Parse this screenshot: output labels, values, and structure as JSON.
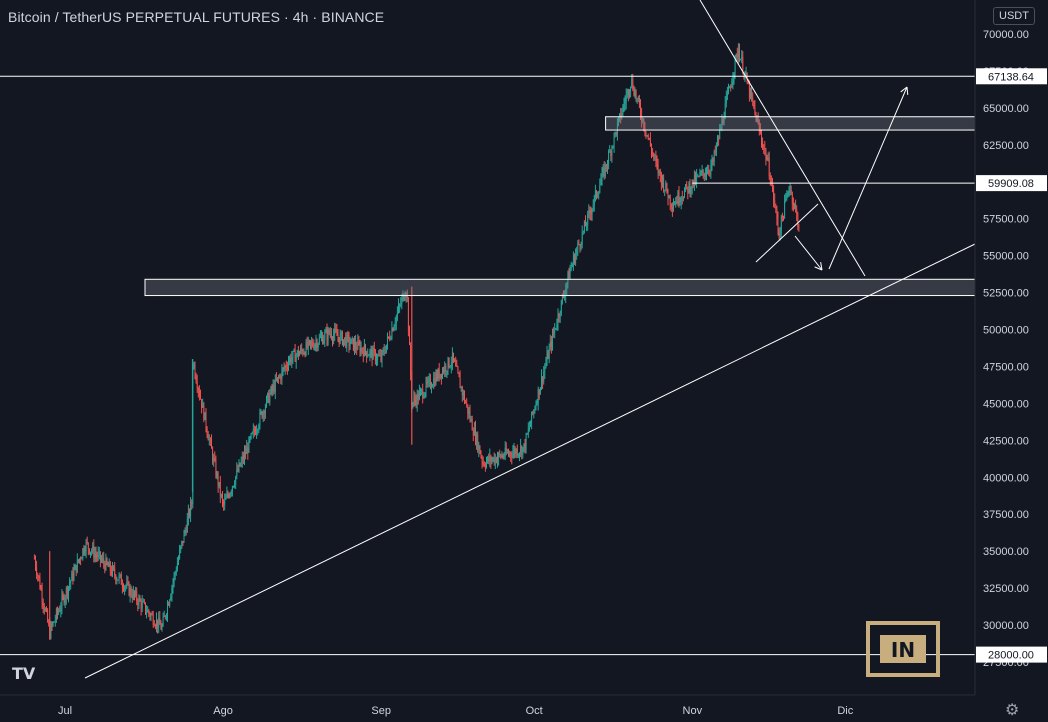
{
  "header": {
    "symbol_title": "Bitcoin / TetherUS PERPETUAL FUTURES · 4h · BINANCE",
    "currency_button": "USDT"
  },
  "branding": {
    "tradingview_logo": "TV",
    "watermark_text": "IN"
  },
  "icons": {
    "settings": "gear-icon"
  },
  "colors": {
    "background": "#131722",
    "up_candle": "#26a69a",
    "down_candle": "#ef5350",
    "axis_text": "#d1d4dc",
    "drawing": "#ffffff",
    "watermark": "#c8ad7f"
  },
  "chart_data": {
    "type": "candlestick",
    "title": "Bitcoin / TetherUS PERPETUAL FUTURES · 4h · BINANCE",
    "interval": "4h",
    "exchange": "BINANCE",
    "quote_currency": "USDT",
    "xlabel": "",
    "ylabel": "",
    "x_tick_labels": [
      "Jul",
      "Ago",
      "Sep",
      "Oct",
      "Nov",
      "Dic"
    ],
    "x_range": [
      "2021-06-25",
      "2021-12-20"
    ],
    "y_tick_labels": [
      "70000.00",
      "67500.00",
      "65000.00",
      "62500.00",
      "60000.00",
      "57500.00",
      "55000.00",
      "52500.00",
      "50000.00",
      "47500.00",
      "45000.00",
      "42500.00",
      "40000.00",
      "37500.00",
      "35000.00",
      "32500.00",
      "30000.00",
      "27500.00"
    ],
    "ylim": [
      27000,
      71000
    ],
    "highlighted_prices": [
      "67138.64",
      "59909.08",
      "28000.00"
    ],
    "grid": false,
    "price_path_approx": [
      {
        "date": "2021-06-25",
        "price": 34500
      },
      {
        "date": "2021-06-28",
        "price": 29500
      },
      {
        "date": "2021-07-05",
        "price": 35500
      },
      {
        "date": "2021-07-12",
        "price": 33000
      },
      {
        "date": "2021-07-20",
        "price": 29800
      },
      {
        "date": "2021-07-26",
        "price": 38500
      },
      {
        "date": "2021-07-26",
        "price": 48000
      },
      {
        "date": "2021-08-01",
        "price": 38000
      },
      {
        "date": "2021-08-10",
        "price": 45500
      },
      {
        "date": "2021-08-14",
        "price": 48000
      },
      {
        "date": "2021-08-22",
        "price": 49800
      },
      {
        "date": "2021-09-01",
        "price": 48000
      },
      {
        "date": "2021-09-06",
        "price": 52900
      },
      {
        "date": "2021-09-07",
        "price": 45000
      },
      {
        "date": "2021-09-15",
        "price": 48000
      },
      {
        "date": "2021-09-21",
        "price": 41000
      },
      {
        "date": "2021-09-29",
        "price": 42000
      },
      {
        "date": "2021-10-05",
        "price": 50000
      },
      {
        "date": "2021-10-08",
        "price": 54000
      },
      {
        "date": "2021-10-15",
        "price": 61000
      },
      {
        "date": "2021-10-20",
        "price": 66900
      },
      {
        "date": "2021-10-25",
        "price": 61000
      },
      {
        "date": "2021-10-28",
        "price": 58500
      },
      {
        "date": "2021-11-05",
        "price": 61200
      },
      {
        "date": "2021-11-10",
        "price": 69000
      },
      {
        "date": "2021-11-16",
        "price": 61000
      },
      {
        "date": "2021-11-18",
        "price": 56500
      },
      {
        "date": "2021-11-20",
        "price": 59800
      },
      {
        "date": "2021-11-22",
        "price": 56900
      }
    ],
    "drawings": {
      "horizontal_lines": [
        {
          "price": 67138.64,
          "label": "67138.64"
        },
        {
          "price": 59909.08,
          "label": "59909.08"
        },
        {
          "price": 28000.0,
          "label": "28000.00"
        }
      ],
      "zones": [
        {
          "from_price": 63500,
          "to_price": 64400
        },
        {
          "from_price": 52300,
          "to_price": 53400
        }
      ],
      "trendlines": [
        "ascending support from July low",
        "descending resistance from November high"
      ],
      "projection_arrows": 2
    }
  }
}
